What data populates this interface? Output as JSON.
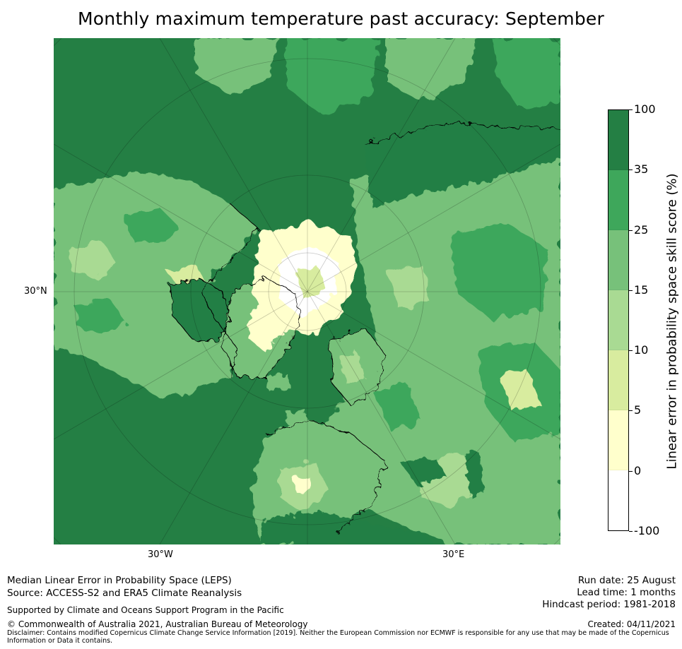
{
  "title": "Monthly maximum temperature past accuracy: September",
  "map": {
    "lat_label": "30°N",
    "lon_labels": [
      "30°W",
      "30°E"
    ],
    "colors": {
      "ocean": "#247f44",
      "land_high": "#3ea75b",
      "land_mid": "#77c17a",
      "land_low": "#a9da93",
      "land_lower": "#d8ec9f",
      "land_min": "#ffffcc",
      "nil": "#ffffff",
      "coast": "#000000"
    }
  },
  "colorbar": {
    "title": "Linear error in probability space skill score (%)",
    "ticks": [
      "100",
      "35",
      "25",
      "15",
      "10",
      "5",
      "0",
      "-100"
    ],
    "colors": [
      "#247f44",
      "#3ea75b",
      "#77c17a",
      "#a9da93",
      "#d8ec9f",
      "#ffffcc",
      "#ffffff"
    ]
  },
  "footer": {
    "line1": "Median Linear Error in Probability Space (LEPS)",
    "line2": "Source: ACCESS-S2 and ERA5 Climate Reanalysis",
    "support": "Supported by Climate and Oceans Support Program in the Pacific",
    "copyright": "© Commonwealth of Australia 2021, Australian Bureau of Meteorology",
    "disclaimer": "Disclaimer: Contains modified Copernicus Climate Change Service Information [2019]. Neither the European Commission nor ECMWF is responsible for any use that may be made of the Copernicus Information or Data it contains.",
    "run_date": "Run date: 25 August",
    "lead_time": "Lead time: 1 months",
    "hindcast": "Hindcast period: 1981-2018",
    "created": "Created: 04/11/2021"
  }
}
